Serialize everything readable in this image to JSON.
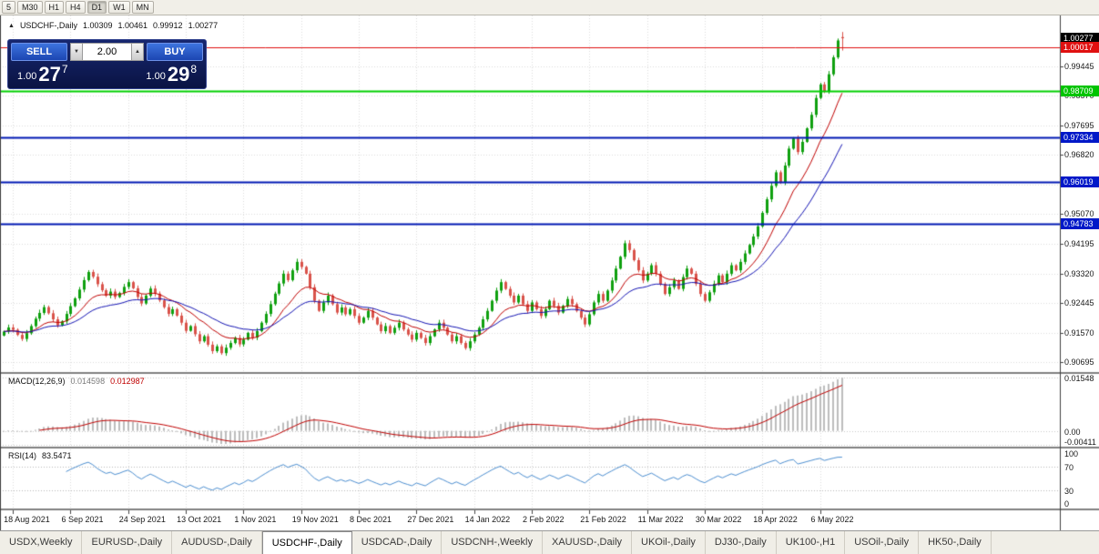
{
  "icons": {
    "chart_marker": "▲",
    "vol_down": "▼",
    "vol_up": "▲"
  },
  "toolbar": {
    "timeframes": [
      "5",
      "M30",
      "H1",
      "H4",
      "D1",
      "W1",
      "MN"
    ],
    "active": "D1"
  },
  "chart": {
    "symbol_line": {
      "symbol": "USDCHF-,Daily",
      "open": "1.00309",
      "high": "1.00461",
      "low": "0.99912",
      "close": "1.00277"
    },
    "trade_widget": {
      "sell_label": "SELL",
      "buy_label": "BUY",
      "volume": "2.00",
      "sell_price": {
        "small": "1.00",
        "big": "27",
        "sup": "7"
      },
      "buy_price": {
        "small": "1.00",
        "big": "29",
        "sup": "8"
      }
    }
  },
  "chart_data": {
    "type": "candlestick+indicators",
    "title": "USDCHF-,Daily",
    "first_open": 0.9148,
    "closes": [
      0.916,
      0.9172,
      0.9165,
      0.915,
      0.9138,
      0.9155,
      0.9176,
      0.9198,
      0.9215,
      0.9232,
      0.9214,
      0.9196,
      0.9178,
      0.919,
      0.9212,
      0.9235,
      0.9258,
      0.9284,
      0.9312,
      0.9336,
      0.9322,
      0.93,
      0.9282,
      0.9266,
      0.9278,
      0.9262,
      0.9274,
      0.9292,
      0.9306,
      0.9288,
      0.9262,
      0.9243,
      0.9266,
      0.9287,
      0.9272,
      0.9252,
      0.9232,
      0.9212,
      0.9226,
      0.9207,
      0.9186,
      0.9162,
      0.9176,
      0.9152,
      0.9131,
      0.9146,
      0.9121,
      0.9102,
      0.9116,
      0.9096,
      0.9112,
      0.9126,
      0.9141,
      0.9122,
      0.9136,
      0.9156,
      0.9142,
      0.9161,
      0.9186,
      0.9212,
      0.9241,
      0.9272,
      0.9302,
      0.9331,
      0.9312,
      0.9341,
      0.9366,
      0.9351,
      0.9331,
      0.9291,
      0.9251,
      0.9221,
      0.9246,
      0.9266,
      0.9241,
      0.9216,
      0.9231,
      0.9211,
      0.9226,
      0.9206,
      0.9186,
      0.9201,
      0.9221,
      0.9201,
      0.9181,
      0.9161,
      0.9176,
      0.9156,
      0.9171,
      0.9186,
      0.9166,
      0.9151,
      0.9136,
      0.9156,
      0.9141,
      0.9126,
      0.9146,
      0.9166,
      0.9186,
      0.9171,
      0.9151,
      0.9131,
      0.9146,
      0.9126,
      0.9111,
      0.9131,
      0.9151,
      0.9171,
      0.9196,
      0.9221,
      0.9251,
      0.9281,
      0.9306,
      0.9286,
      0.9266,
      0.9246,
      0.9266,
      0.9241,
      0.9221,
      0.9246,
      0.9226,
      0.9206,
      0.9226,
      0.9251,
      0.9236,
      0.9216,
      0.9236,
      0.9256,
      0.9241,
      0.9221,
      0.9201,
      0.9181,
      0.9211,
      0.9246,
      0.9271,
      0.9251,
      0.9281,
      0.9311,
      0.9346,
      0.9381,
      0.9421,
      0.9401,
      0.9371,
      0.9341,
      0.9311,
      0.9331,
      0.9356,
      0.9331,
      0.9301,
      0.9271,
      0.9291,
      0.9311,
      0.9286,
      0.9321,
      0.9346,
      0.9331,
      0.9301,
      0.9271,
      0.9251,
      0.9276,
      0.9301,
      0.9326,
      0.9306,
      0.9331,
      0.9356,
      0.9341,
      0.9366,
      0.9391,
      0.9416,
      0.9441,
      0.9471,
      0.9511,
      0.9551,
      0.9591,
      0.9631,
      0.9601,
      0.9651,
      0.9701,
      0.9731,
      0.9691,
      0.9721,
      0.9761,
      0.9801,
      0.9851,
      0.9891,
      0.9871,
      0.9921,
      0.9971,
      1.0021,
      1.00277
    ],
    "last_ohlc": [
      1.00309,
      1.00461,
      0.99912,
      1.00277
    ],
    "price_range": {
      "min": 0.904,
      "max": 1.0095
    },
    "y_axis_ticks": [
      "0.99445",
      "0.98570",
      "0.97695",
      "0.96820",
      "0.95945",
      "0.95070",
      "0.94195",
      "0.93320",
      "0.92445",
      "0.91570",
      "0.90695"
    ],
    "levels": [
      {
        "value": 1.00277,
        "label": "1.00277",
        "bg": "#000000",
        "line": "none",
        "name": "price-label-current"
      },
      {
        "value": 1.00017,
        "label": "1.00017",
        "bg": "#e01010",
        "line": "#e01010",
        "lw": 1,
        "name": "price-label-red-line"
      },
      {
        "value": 0.98709,
        "label": "0.98709",
        "bg": "#00c400",
        "line": "#00d000",
        "lw": 2,
        "name": "price-label-green-line"
      },
      {
        "value": 0.97334,
        "label": "0.97334",
        "bg": "#0018c8",
        "line": "#0018b4",
        "lw": 2,
        "name": "price-label-blue-line-1"
      },
      {
        "value": 0.96019,
        "label": "0.96019",
        "bg": "#0018c8",
        "line": "#0018b4",
        "lw": 2,
        "name": "price-label-blue-line-2"
      },
      {
        "value": 0.94783,
        "label": "0.94783",
        "bg": "#0018c8",
        "line": "#0018b4",
        "lw": 2,
        "name": "price-label-blue-line-3"
      }
    ],
    "x_labels": [
      {
        "idx": 2,
        "label": "18 Aug 2021"
      },
      {
        "idx": 15,
        "label": "6 Sep 2021"
      },
      {
        "idx": 28,
        "label": "24 Sep 2021"
      },
      {
        "idx": 41,
        "label": "13 Oct 2021"
      },
      {
        "idx": 54,
        "label": "1 Nov 2021"
      },
      {
        "idx": 67,
        "label": "19 Nov 2021"
      },
      {
        "idx": 80,
        "label": "8 Dec 2021"
      },
      {
        "idx": 93,
        "label": "27 Dec 2021"
      },
      {
        "idx": 106,
        "label": "14 Jan 2022"
      },
      {
        "idx": 119,
        "label": "2 Feb 2022"
      },
      {
        "idx": 132,
        "label": "21 Feb 2022"
      },
      {
        "idx": 145,
        "label": "11 Mar 2022"
      },
      {
        "idx": 158,
        "label": "30 Mar 2022"
      },
      {
        "idx": 171,
        "label": "18 Apr 2022"
      },
      {
        "idx": 184,
        "label": "6 May 2022"
      }
    ],
    "macd": {
      "label": "MACD(12,26,9)",
      "values_text": [
        "0.014598",
        "0.012987"
      ],
      "axis": [
        "0.01548",
        "0.00",
        "-0.00411"
      ],
      "scale_max": 0.01548,
      "range": {
        "min": -0.0046,
        "max": 0.0166
      },
      "params": [
        12,
        26,
        9
      ]
    },
    "rsi": {
      "label": "RSI(14)",
      "value_text": "83.5471",
      "axis": [
        "100",
        "70",
        "30",
        "0"
      ],
      "levels": [
        70,
        30
      ],
      "period": 14
    },
    "colors": {
      "up": "#0fa00f",
      "down": "#d9524a",
      "ma_fast": "#c00000",
      "ma_slow": "#1414b4",
      "grid": "#dcdcdc",
      "sep": "#808080",
      "macd_hist": "#bdbdbd",
      "macd_signal": "#c00000",
      "rsi_line": "#4d8fd1"
    }
  },
  "tabs": {
    "items": [
      "USDX,Weekly",
      "EURUSD-,Daily",
      "AUDUSD-,Daily",
      "USDCHF-,Daily",
      "USDCAD-,Daily",
      "USDCNH-,Weekly",
      "XAUUSD-,Daily",
      "UKOil-,Daily",
      "DJ30-,Daily",
      "UK100-,H1",
      "USOil-,Daily",
      "HK50-,Daily"
    ],
    "active": "USDCHF-,Daily"
  }
}
